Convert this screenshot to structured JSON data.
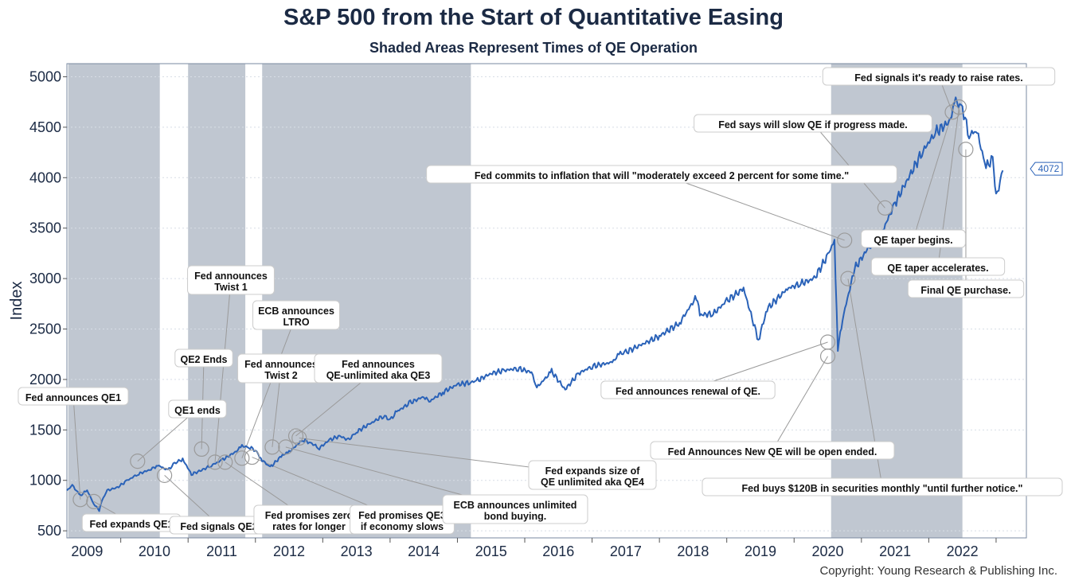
{
  "chart_data": {
    "type": "line",
    "title": "S&P 500 from the Start of Quantitative Easing",
    "subtitle": "Shaded Areas Represent Times of QE Operation",
    "ylabel": "Index",
    "xlabel": "",
    "xlim": [
      2008.7,
      2022.95
    ],
    "ylim": [
      430,
      5130
    ],
    "y_ticks": [
      500,
      1000,
      1500,
      2000,
      2500,
      3000,
      3500,
      4000,
      4500,
      5000
    ],
    "x_ticks": [
      2009,
      2010,
      2011,
      2012,
      2013,
      2014,
      2015,
      2016,
      2017,
      2018,
      2019,
      2020,
      2021,
      2022
    ],
    "grid": "horizontal",
    "shaded_periods": [
      [
        2008.72,
        2010.08
      ],
      [
        2010.5,
        2011.35
      ],
      [
        2011.6,
        2014.7
      ],
      [
        2020.05,
        2022.0
      ]
    ],
    "series": [
      {
        "color": "#2a62b8",
        "x": [
          2008.7,
          2008.78,
          2008.9,
          2009.0,
          2009.1,
          2009.18,
          2009.22,
          2009.3,
          2009.45,
          2009.6,
          2009.75,
          2009.95,
          2010.05,
          2010.2,
          2010.3,
          2010.42,
          2010.55,
          2010.7,
          2010.85,
          2011.0,
          2011.2,
          2011.3,
          2011.4,
          2011.5,
          2011.6,
          2011.72,
          2011.9,
          2012.0,
          2012.2,
          2012.3,
          2012.45,
          2012.6,
          2012.75,
          2012.88,
          2013.0,
          2013.2,
          2013.4,
          2013.5,
          2013.6,
          2013.8,
          2014.0,
          2014.08,
          2014.3,
          2014.5,
          2014.7,
          2014.8,
          2015.0,
          2015.2,
          2015.4,
          2015.6,
          2015.68,
          2015.9,
          2016.1,
          2016.3,
          2016.5,
          2016.8,
          2016.9,
          2017.0,
          2017.5,
          2017.8,
          2018.05,
          2018.1,
          2018.3,
          2018.5,
          2018.75,
          2018.97,
          2019.1,
          2019.4,
          2019.6,
          2019.8,
          2020.0,
          2020.1,
          2020.15,
          2020.22,
          2020.4,
          2020.6,
          2020.8,
          2021.0,
          2021.2,
          2021.4,
          2021.6,
          2021.8,
          2021.9,
          2022.0,
          2022.1,
          2022.2,
          2022.35,
          2022.45,
          2022.5,
          2022.6
        ],
        "y": [
          900,
          950,
          850,
          900,
          770,
          700,
          800,
          900,
          930,
          1000,
          1060,
          1110,
          1150,
          1100,
          1170,
          1210,
          1060,
          1100,
          1150,
          1200,
          1280,
          1340,
          1330,
          1300,
          1200,
          1130,
          1250,
          1280,
          1400,
          1380,
          1320,
          1400,
          1440,
          1400,
          1480,
          1560,
          1640,
          1600,
          1680,
          1770,
          1830,
          1780,
          1880,
          1950,
          1970,
          1990,
          2060,
          2090,
          2110,
          2070,
          1920,
          2080,
          1900,
          2060,
          2130,
          2170,
          2250,
          2270,
          2430,
          2560,
          2820,
          2640,
          2650,
          2780,
          2900,
          2390,
          2700,
          2900,
          2950,
          3000,
          3230,
          3380,
          2300,
          2600,
          3100,
          3300,
          3450,
          3750,
          4000,
          4250,
          4450,
          4550,
          4750,
          4700,
          4400,
          4500,
          4100,
          4200,
          3800,
          4072
        ]
      }
    ],
    "last_value_label": "4072",
    "annotations": [
      {
        "text": "Fed announces QE1",
        "box": [
          92,
          498
        ],
        "point": [
          2008.9,
          810
        ]
      },
      {
        "text": "Fed expands QE1",
        "box": [
          165,
          657
        ],
        "point": [
          2009.1,
          790
        ]
      },
      {
        "text": "QE1 ends",
        "box": [
          248,
          514
        ],
        "point": [
          2009.75,
          1190
        ]
      },
      {
        "text": "Fed signals QE2",
        "box": [
          275,
          660
        ],
        "point": [
          2010.15,
          1050
        ]
      },
      {
        "text": "QE2 Ends",
        "box": [
          256,
          450
        ],
        "point": [
          2010.7,
          1310
        ]
      },
      {
        "text": "Fed announces|Twist 1",
        "box": [
          290,
          352
        ],
        "point": [
          2010.9,
          1180
        ]
      },
      {
        "text": "ECB announces|LTRO",
        "box": [
          372,
          396
        ],
        "point": [
          2011.3,
          1220
        ]
      },
      {
        "text": "Fed announces|Twist 2",
        "box": [
          353,
          463
        ],
        "point": [
          2011.75,
          1330
        ]
      },
      {
        "text": "Fed announces|QE-unlimited aka QE3",
        "box": [
          475,
          463
        ],
        "point": [
          2012.1,
          1440
        ]
      },
      {
        "text": "Fed promises zero|rates for longer",
        "box": [
          388,
          653
        ],
        "point": [
          2011.05,
          1180
        ]
      },
      {
        "text": "Fed promises QE3|if economy slows",
        "box": [
          505,
          653
        ],
        "point": [
          2011.45,
          1230
        ]
      },
      {
        "text": "ECB announces unlimited|bond buying.",
        "box": [
          647,
          640
        ],
        "point": [
          2011.95,
          1330
        ]
      },
      {
        "text": "Fed expands size of|QE unlimited aka QE4",
        "box": [
          744,
          597
        ],
        "point": [
          2012.15,
          1420
        ]
      },
      {
        "text": "Fed announces renewal of QE.",
        "box": [
          864,
          490
        ],
        "point": [
          2020.0,
          2370
        ]
      },
      {
        "text": "Fed Announces New QE will be open ended.",
        "box": [
          970,
          566
        ],
        "point": [
          2020.0,
          2230
        ]
      },
      {
        "text": "Fed buys $120B in securities monthly \"until further notice.\"",
        "box": [
          1108,
          612
        ],
        "point": [
          2020.3,
          3000
        ]
      },
      {
        "text": "Fed commits to inflation that will \"moderately exceed 2 percent for some time.\"",
        "box": [
          831,
          219
        ],
        "point": [
          2020.25,
          3380
        ]
      },
      {
        "text": "Fed says will slow QE if progress made.",
        "box": [
          1021,
          155
        ],
        "point": [
          2020.85,
          3700
        ]
      },
      {
        "text": "Fed signals it's ready to raise rates.",
        "box": [
          1179,
          96
        ],
        "point": [
          2021.85,
          4650
        ]
      },
      {
        "text": "QE taper begins.",
        "box": [
          1147,
          300
        ],
        "point": [
          2021.85,
          4650
        ]
      },
      {
        "text": "QE taper accelerates.",
        "box": [
          1178,
          335
        ],
        "point": [
          2021.95,
          4700
        ]
      },
      {
        "text": "Final QE purchase.",
        "box": [
          1213,
          363
        ],
        "point": [
          2022.05,
          4280
        ]
      }
    ]
  },
  "copyright": "Copyright: Young Research & Publishing Inc."
}
